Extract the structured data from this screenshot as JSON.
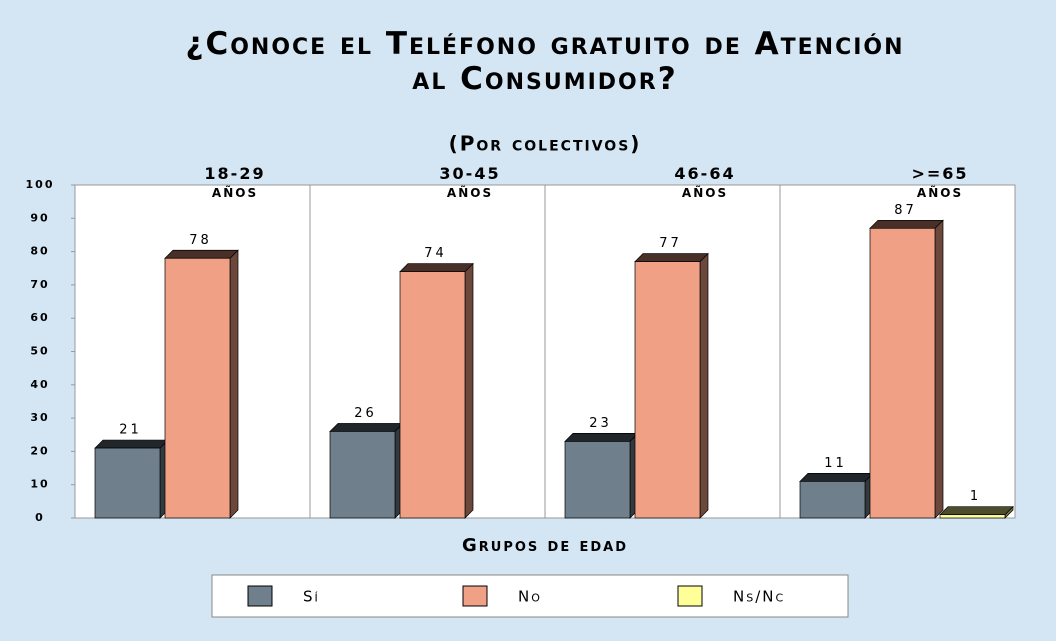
{
  "chart_data": {
    "type": "bar3d",
    "title": "¿Conoce el Teléfono gratuito de Atención al Consumidor?",
    "subtitle": "(Por colectivos)",
    "x_label": "Grupos de edad",
    "categories": [
      "18-29 años",
      "30-45 años",
      "46-64 años",
      ">=65 años"
    ],
    "series": [
      {
        "name": "Sí",
        "color": "#6f808c",
        "values": [
          21,
          26,
          23,
          11
        ]
      },
      {
        "name": "No",
        "color": "#f0a085",
        "values": [
          78,
          74,
          77,
          87
        ]
      },
      {
        "name": "Ns/Nc",
        "color": "#ffff99",
        "values": [
          null,
          null,
          null,
          1
        ]
      }
    ],
    "ylim": [
      0,
      100
    ],
    "yticks": [
      0,
      10,
      20,
      30,
      40,
      50,
      60,
      70,
      80,
      90,
      100
    ],
    "grid": false
  }
}
